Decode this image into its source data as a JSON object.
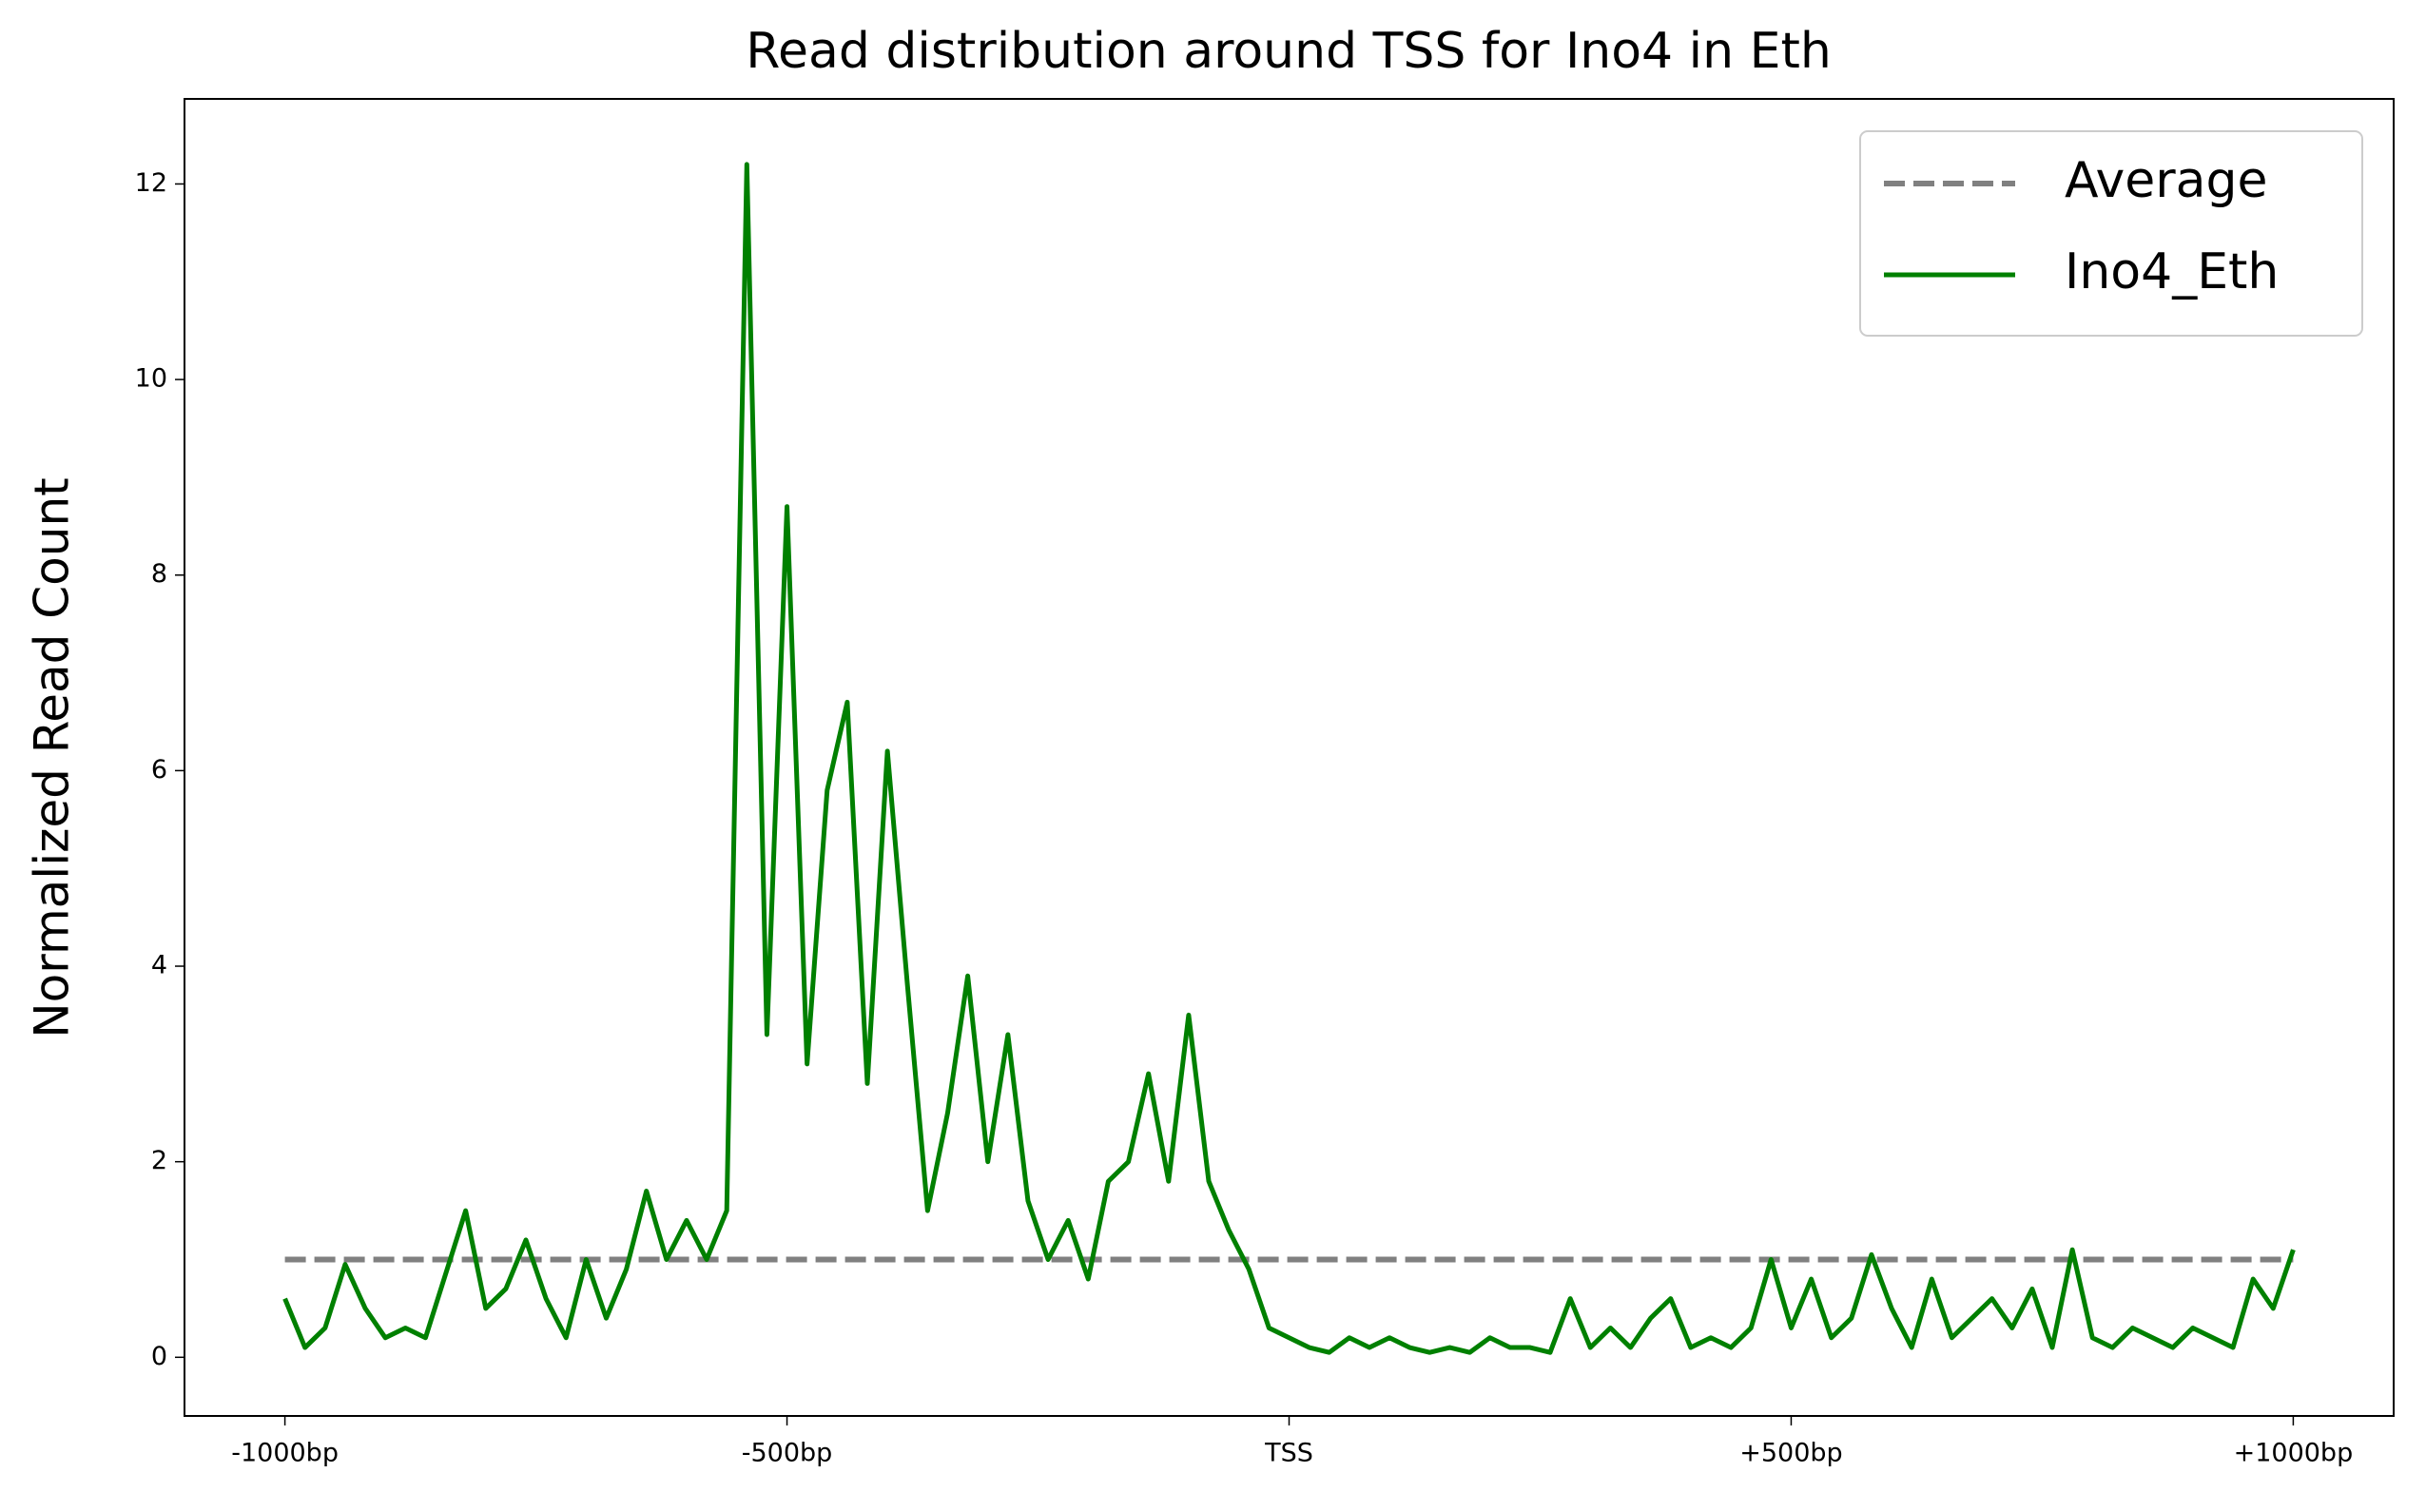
{
  "chart_data": {
    "type": "line",
    "title": "Read distribution around TSS for Ino4 in Eth",
    "y_label": "Normalized Read Count",
    "xlim": [
      -1100,
      1100
    ],
    "xticks": [
      {
        "value": -1000,
        "label": "-1000bp"
      },
      {
        "value": -500,
        "label": "-500bp"
      },
      {
        "value": 0,
        "label": "TSS"
      },
      {
        "value": 500,
        "label": "+500bp"
      },
      {
        "value": 1000,
        "label": "+1000bp"
      }
    ],
    "ylim": [
      -0.6,
      12.87
    ],
    "yticks": [
      0,
      2,
      4,
      6,
      8,
      10,
      12
    ],
    "legend": "upper right",
    "series": [
      {
        "name": "Average",
        "color": "#808080",
        "style": "dashed",
        "x": [
          -1000,
          1000
        ],
        "values": [
          1,
          1
        ]
      },
      {
        "name": "Ino4_Eth",
        "color": "#008000",
        "style": "solid",
        "x": [
          -1000,
          -980,
          -960,
          -940,
          -920,
          -900,
          -880,
          -860,
          -840,
          -820,
          -800,
          -780,
          -760,
          -740,
          -720,
          -700,
          -680,
          -660,
          -640,
          -620,
          -600,
          -580,
          -560,
          -540,
          -520,
          -500,
          -480,
          -460,
          -440,
          -420,
          -400,
          -380,
          -360,
          -340,
          -320,
          -300,
          -280,
          -260,
          -240,
          -220,
          -200,
          -180,
          -160,
          -140,
          -120,
          -100,
          -80,
          -60,
          -40,
          -20,
          0,
          20,
          40,
          60,
          80,
          100,
          120,
          140,
          160,
          180,
          200,
          220,
          240,
          260,
          280,
          300,
          320,
          340,
          360,
          380,
          400,
          420,
          440,
          460,
          480,
          500,
          520,
          540,
          560,
          580,
          600,
          620,
          640,
          660,
          680,
          700,
          720,
          740,
          760,
          780,
          800,
          820,
          840,
          860,
          880,
          900,
          920,
          940,
          960,
          980,
          1000
        ],
        "values": [
          0.6,
          0.1,
          0.3,
          0.95,
          0.5,
          0.2,
          0.3,
          0.2,
          0.85,
          1.5,
          0.5,
          0.7,
          1.2,
          0.6,
          0.2,
          1.0,
          0.4,
          0.9,
          1.7,
          1.0,
          1.4,
          1.0,
          1.5,
          12.2,
          3.3,
          8.7,
          3.0,
          5.8,
          6.7,
          2.8,
          6.2,
          3.8,
          1.5,
          2.5,
          3.9,
          2.0,
          3.3,
          1.6,
          1.0,
          1.4,
          0.8,
          1.8,
          2.0,
          2.9,
          1.8,
          3.5,
          1.8,
          1.3,
          0.9,
          0.3,
          0.2,
          0.1,
          0.05,
          0.2,
          0.1,
          0.2,
          0.1,
          0.05,
          0.1,
          0.05,
          0.2,
          0.1,
          0.1,
          0.05,
          0.6,
          0.1,
          0.3,
          0.1,
          0.4,
          0.6,
          0.1,
          0.2,
          0.1,
          0.3,
          1.0,
          0.3,
          0.8,
          0.2,
          0.4,
          1.05,
          0.5,
          0.1,
          0.8,
          0.2,
          0.4,
          0.6,
          0.3,
          0.7,
          0.1,
          1.1,
          0.2,
          0.1,
          0.3,
          0.2,
          0.1,
          0.3,
          0.2,
          0.1,
          0.8,
          0.5,
          1.1
        ]
      }
    ]
  }
}
